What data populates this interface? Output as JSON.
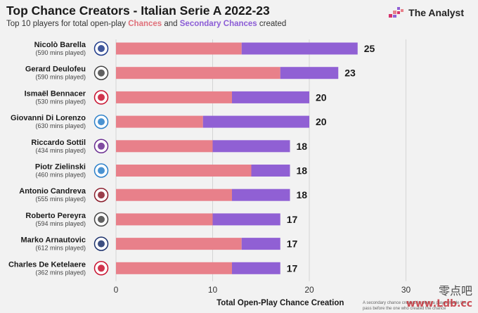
{
  "header": {
    "title": "Top Chance Creators - Italian Serie A 2022-23",
    "subtitle_prefix": "Top 10 players for total open-play ",
    "subtitle_series1": "Chances",
    "subtitle_mid": " and ",
    "subtitle_series2": "Secondary Chances",
    "subtitle_suffix": " created",
    "brand": "The Analyst"
  },
  "footnote": "A secondary chance created is when a player made the pass before the one who created the chance",
  "watermark": {
    "text": "零点吧",
    "url": "www.Ldb.cc"
  },
  "colors": {
    "chances": "#e8808a",
    "secondary": "#9060d4",
    "background": "#f2f2f2",
    "grid": "#d4d4d4"
  },
  "chart_data": {
    "type": "bar",
    "orientation": "horizontal",
    "stacked": true,
    "xlabel": "Total Open-Play Chance Creation",
    "xlim": [
      0,
      30
    ],
    "xticks": [
      0,
      10,
      20,
      30
    ],
    "grid": true,
    "players": [
      {
        "name": "Nicolò Barella",
        "mins": "(590 mins played)",
        "club_icon": "inter-crest-icon",
        "club_color": "#1e3a8a"
      },
      {
        "name": "Gerard Deulofeu",
        "mins": "(590 mins played)",
        "club_icon": "udinese-crest-icon",
        "club_color": "#444444"
      },
      {
        "name": "Ismaël Bennacer",
        "mins": "(530 mins played)",
        "club_icon": "milan-crest-icon",
        "club_color": "#c8102e"
      },
      {
        "name": "Giovanni Di Lorenzo",
        "mins": "(630 mins played)",
        "club_icon": "napoli-crest-icon",
        "club_color": "#2a7fc9"
      },
      {
        "name": "Riccardo Sottil",
        "mins": "(434 mins played)",
        "club_icon": "fiorentina-crest-icon",
        "club_color": "#6a2c91"
      },
      {
        "name": "Piotr Zielinski",
        "mins": "(460 mins played)",
        "club_icon": "napoli-crest-icon",
        "club_color": "#2a7fc9"
      },
      {
        "name": "Antonio Candreva",
        "mins": "(555 mins played)",
        "club_icon": "salernitana-crest-icon",
        "club_color": "#8a1c2b"
      },
      {
        "name": "Roberto Pereyra",
        "mins": "(594 mins played)",
        "club_icon": "udinese-crest-icon",
        "club_color": "#444444"
      },
      {
        "name": "Marko Arnautovic",
        "mins": "(612 mins played)",
        "club_icon": "bologna-crest-icon",
        "club_color": "#1a2f6b"
      },
      {
        "name": "Charles De Ketelaere",
        "mins": "(362 mins played)",
        "club_icon": "milan-crest-icon",
        "club_color": "#c8102e"
      }
    ],
    "series": [
      {
        "name": "Chances",
        "values": [
          13,
          17,
          12,
          9,
          10,
          14,
          12,
          10,
          13,
          12
        ]
      },
      {
        "name": "Secondary Chances",
        "values": [
          12,
          6,
          8,
          11,
          8,
          4,
          6,
          7,
          4,
          5
        ]
      }
    ],
    "totals": [
      25,
      23,
      20,
      20,
      18,
      18,
      18,
      17,
      17,
      17
    ]
  }
}
